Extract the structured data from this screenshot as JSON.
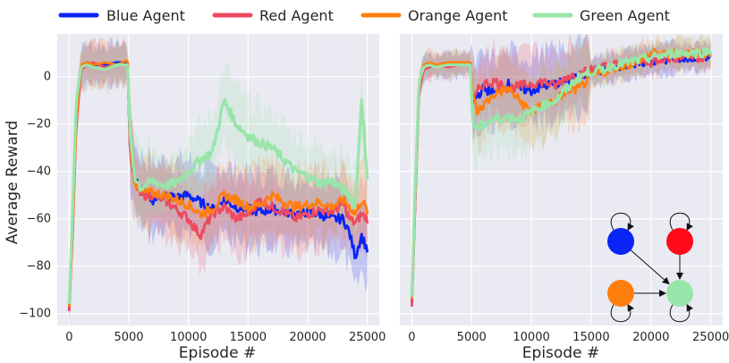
{
  "legend": [
    {
      "name": "Blue Agent",
      "color": "#0a24f5"
    },
    {
      "name": "Red Agent",
      "color": "#ef4960"
    },
    {
      "name": "Orange Agent",
      "color": "#ff7f0e"
    },
    {
      "name": "Green Agent",
      "color": "#98e5a9"
    }
  ],
  "chart_data": [
    {
      "type": "line",
      "panel": "left",
      "title": "",
      "xlabel": "Episode #",
      "ylabel": "Average Reward",
      "xlim": [
        -1000,
        26000
      ],
      "ylim": [
        -105,
        18
      ],
      "xticks": [
        0,
        5000,
        10000,
        15000,
        20000,
        25000
      ],
      "yticks": [
        0,
        -20,
        -40,
        -60,
        -80,
        -100
      ],
      "grid": true,
      "legend_placement": "top",
      "series": [
        {
          "name": "Blue Agent",
          "color": "#0a24f5",
          "x": [
            0,
            300,
            600,
            1000,
            1500,
            2000,
            3000,
            4000,
            4900,
            5100,
            5500,
            6000,
            7000,
            8000,
            9000,
            10000,
            11000,
            12000,
            13000,
            14000,
            15000,
            16000,
            17000,
            18000,
            19000,
            20000,
            21000,
            22000,
            23000,
            23500,
            24000,
            24500,
            25000
          ],
          "y": [
            -98,
            -60,
            -15,
            4,
            6,
            5,
            5,
            6,
            6,
            -30,
            -43,
            -48,
            -52,
            -50,
            -51,
            -50,
            -53,
            -56,
            -52,
            -55,
            -56,
            -57,
            -56,
            -57,
            -58,
            -57,
            -58,
            -60,
            -60,
            -66,
            -76,
            -67,
            -73
          ]
        },
        {
          "name": "Red Agent",
          "color": "#ef4960",
          "x": [
            0,
            300,
            600,
            1000,
            1500,
            2000,
            3000,
            4000,
            4900,
            5100,
            5500,
            6000,
            7000,
            8000,
            9000,
            10000,
            11000,
            12000,
            13000,
            14000,
            15000,
            16000,
            17000,
            18000,
            19000,
            20000,
            21000,
            22000,
            23000,
            23500,
            24000,
            24500,
            25000
          ],
          "y": [
            -99,
            -65,
            -20,
            3,
            5,
            6,
            4,
            5,
            5,
            -32,
            -45,
            -50,
            -50,
            -52,
            -56,
            -60,
            -67,
            -58,
            -55,
            -60,
            -58,
            -52,
            -55,
            -57,
            -60,
            -58,
            -56,
            -57,
            -54,
            -60,
            -62,
            -58,
            -60
          ]
        },
        {
          "name": "Orange Agent",
          "color": "#ff7f0e",
          "x": [
            0,
            300,
            600,
            1000,
            1500,
            2000,
            3000,
            4000,
            4900,
            5100,
            5500,
            6000,
            7000,
            8000,
            9000,
            10000,
            11000,
            12000,
            13000,
            14000,
            15000,
            16000,
            17000,
            18000,
            19000,
            20000,
            21000,
            22000,
            23000,
            23500,
            24000,
            24500,
            25000
          ],
          "y": [
            -97,
            -62,
            -18,
            5,
            6,
            5,
            6,
            5,
            7,
            -28,
            -44,
            -49,
            -49,
            -50,
            -52,
            -54,
            -58,
            -56,
            -50,
            -52,
            -55,
            -54,
            -50,
            -53,
            -55,
            -54,
            -53,
            -55,
            -52,
            -55,
            -58,
            -52,
            -57
          ]
        },
        {
          "name": "Green Agent",
          "color": "#98e5a9",
          "x": [
            0,
            300,
            600,
            1000,
            1500,
            2000,
            3000,
            4000,
            4900,
            5100,
            5500,
            6000,
            7000,
            8000,
            9000,
            10000,
            11000,
            12000,
            13000,
            14000,
            15000,
            16000,
            17000,
            18000,
            19000,
            20000,
            21000,
            22000,
            23000,
            23500,
            24000,
            24500,
            25000
          ],
          "y": [
            -96,
            -55,
            -10,
            4,
            5,
            4,
            3,
            5,
            5,
            -25,
            -42,
            -47,
            -44,
            -46,
            -45,
            -40,
            -35,
            -32,
            -10,
            -20,
            -25,
            -28,
            -30,
            -35,
            -40,
            -42,
            -45,
            -44,
            -48,
            -50,
            -55,
            -10,
            -42
          ]
        }
      ]
    },
    {
      "type": "line",
      "panel": "right",
      "title": "",
      "xlabel": "Episode #",
      "ylabel": "",
      "xlim": [
        -1000,
        26000
      ],
      "ylim": [
        -105,
        18
      ],
      "xticks": [
        0,
        5000,
        10000,
        15000,
        20000,
        25000
      ],
      "yticks": [
        0,
        -20,
        -40,
        -60,
        -80,
        -100
      ],
      "grid": true,
      "series": [
        {
          "name": "Blue Agent",
          "color": "#0a24f5",
          "x": [
            0,
            300,
            600,
            1000,
            1500,
            2000,
            3000,
            4000,
            4900,
            5100,
            5500,
            6000,
            7000,
            8000,
            9000,
            10000,
            11000,
            12000,
            13000,
            14000,
            15000,
            16000,
            17000,
            18000,
            19000,
            20000,
            21000,
            22000,
            23000,
            24000,
            25000
          ],
          "y": [
            -95,
            -50,
            -5,
            4,
            5,
            4,
            5,
            5,
            6,
            -10,
            -8,
            -5,
            -7,
            -3,
            -5,
            -6,
            -4,
            -3,
            -2,
            0,
            2,
            3,
            4,
            5,
            6,
            7,
            7,
            8,
            8,
            8,
            9
          ]
        },
        {
          "name": "Red Agent",
          "color": "#ef4960",
          "x": [
            0,
            300,
            600,
            1000,
            1500,
            2000,
            3000,
            4000,
            4900,
            5100,
            5500,
            6000,
            7000,
            8000,
            9000,
            10000,
            11000,
            12000,
            13000,
            14000,
            15000,
            16000,
            17000,
            18000,
            19000,
            20000,
            21000,
            22000,
            23000,
            24000,
            25000
          ],
          "y": [
            -97,
            -52,
            -6,
            3,
            4,
            5,
            4,
            5,
            5,
            -12,
            -6,
            -3,
            -2,
            -5,
            -4,
            -3,
            -2,
            -4,
            0,
            1,
            3,
            4,
            5,
            6,
            7,
            6,
            8,
            8,
            9,
            8,
            9
          ]
        },
        {
          "name": "Orange Agent",
          "color": "#ff7f0e",
          "x": [
            0,
            300,
            600,
            1000,
            1500,
            2000,
            3000,
            4000,
            4900,
            5100,
            5500,
            6000,
            7000,
            8000,
            9000,
            10000,
            11000,
            12000,
            13000,
            14000,
            15000,
            16000,
            17000,
            18000,
            19000,
            20000,
            21000,
            22000,
            23000,
            24000,
            25000
          ],
          "y": [
            -94,
            -48,
            -4,
            5,
            6,
            5,
            6,
            6,
            6,
            -8,
            -15,
            -12,
            -7,
            -5,
            -10,
            -15,
            -12,
            -10,
            -6,
            -5,
            0,
            2,
            4,
            5,
            7,
            10,
            9,
            10,
            10,
            10,
            10
          ]
        },
        {
          "name": "Green Agent",
          "color": "#98e5a9",
          "x": [
            0,
            300,
            600,
            1000,
            1500,
            2000,
            3000,
            4000,
            4900,
            5100,
            5500,
            6000,
            7000,
            8000,
            9000,
            10000,
            11000,
            12000,
            13000,
            14000,
            15000,
            16000,
            17000,
            18000,
            19000,
            20000,
            21000,
            22000,
            23000,
            24000,
            25000
          ],
          "y": [
            -93,
            -45,
            -2,
            4,
            5,
            4,
            5,
            5,
            5,
            -20,
            -22,
            -20,
            -18,
            -17,
            -18,
            -15,
            -12,
            -10,
            -5,
            0,
            2,
            3,
            5,
            6,
            7,
            8,
            9,
            10,
            10,
            10,
            11
          ]
        }
      ]
    }
  ],
  "inset_diagram": {
    "nodes": [
      {
        "id": "blue",
        "color": "#0a24f5"
      },
      {
        "id": "red",
        "color": "#ff0a18"
      },
      {
        "id": "orange",
        "color": "#ff7f0e"
      },
      {
        "id": "green",
        "color": "#98e5a9"
      }
    ],
    "edges": [
      {
        "from": "blue",
        "to": "blue"
      },
      {
        "from": "red",
        "to": "red"
      },
      {
        "from": "orange",
        "to": "orange"
      },
      {
        "from": "green",
        "to": "green"
      },
      {
        "from": "blue",
        "to": "green"
      },
      {
        "from": "red",
        "to": "green"
      },
      {
        "from": "orange",
        "to": "green"
      }
    ]
  }
}
